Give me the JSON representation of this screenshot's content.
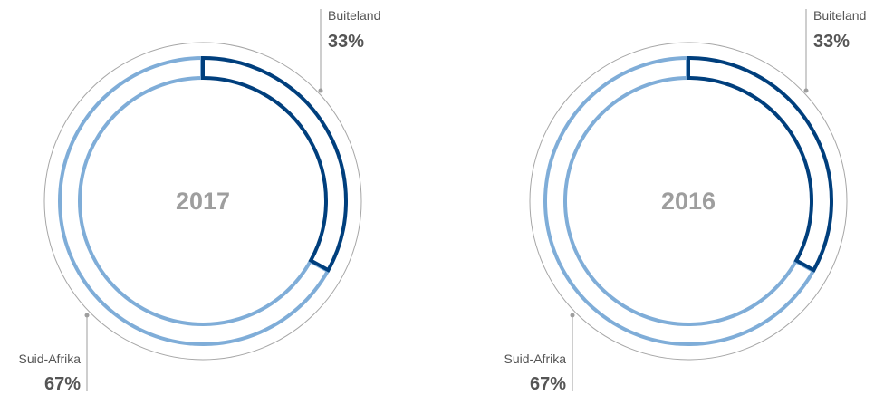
{
  "colors": {
    "foreign": "#003f7d",
    "domestic": "#7fadd8",
    "outer_ring": "#a6a6a6",
    "leader": "#9e9e9e",
    "label_text": "#555555",
    "year_text": "#9e9e9e"
  },
  "chart_data": [
    {
      "type": "pie",
      "center_label": "2017",
      "categories": [
        "Buiteland",
        "Suid-Afrika"
      ],
      "values": [
        33,
        67
      ],
      "value_labels": [
        "33%",
        "67%"
      ]
    },
    {
      "type": "pie",
      "center_label": "2016",
      "categories": [
        "Buiteland",
        "Suid-Afrika"
      ],
      "values": [
        33,
        67
      ],
      "value_labels": [
        "33%",
        "67%"
      ]
    }
  ]
}
